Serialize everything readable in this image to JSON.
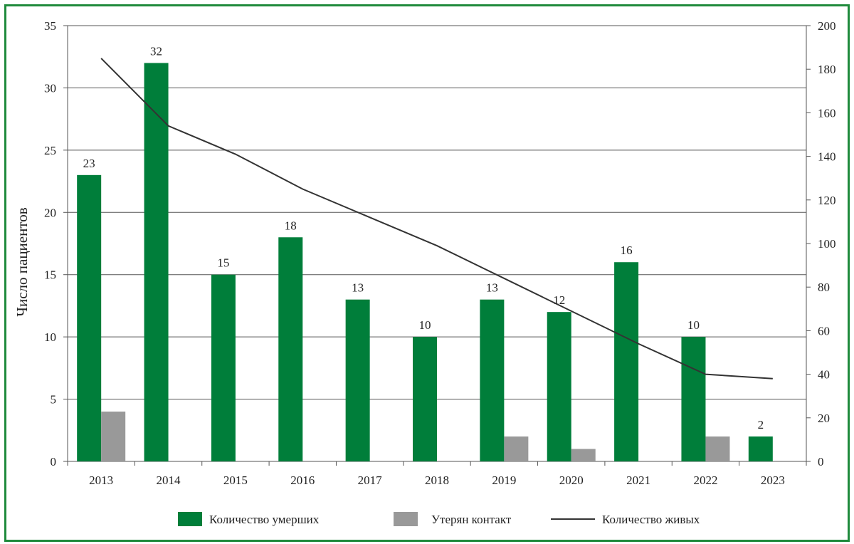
{
  "chart_data": {
    "type": "bar",
    "categories": [
      "2013",
      "2014",
      "2015",
      "2016",
      "2017",
      "2018",
      "2019",
      "2020",
      "2021",
      "2022",
      "2023"
    ],
    "series": [
      {
        "name": "Количество умерших",
        "type": "bar",
        "axis": "left",
        "color": "#007e3a",
        "values": [
          23,
          32,
          15,
          18,
          13,
          10,
          13,
          12,
          16,
          10,
          2
        ]
      },
      {
        "name": "Утерян контакт",
        "type": "bar",
        "axis": "left",
        "color": "#999999",
        "values": [
          4,
          0,
          0,
          0,
          0,
          0,
          2,
          1,
          0,
          2,
          0
        ]
      },
      {
        "name": "Количество живых",
        "type": "line",
        "axis": "right",
        "color": "#333333",
        "values": [
          185,
          154,
          141,
          125,
          112,
          99,
          84,
          69,
          54,
          40,
          38
        ]
      }
    ],
    "data_labels": [
      "23",
      "32",
      "15",
      "18",
      "13",
      "10",
      "13",
      "12",
      "16",
      "10",
      "2"
    ],
    "ylabel": "Число пациентов",
    "ylim": [
      0,
      35
    ],
    "y_ticks": [
      "0",
      "5",
      "10",
      "15",
      "20",
      "25",
      "30",
      "35"
    ],
    "y2lim": [
      0,
      200
    ],
    "y2_ticks": [
      "0",
      "20",
      "40",
      "60",
      "80",
      "100",
      "120",
      "140",
      "160",
      "180",
      "200"
    ],
    "grid": true,
    "legend_position": "bottom"
  }
}
